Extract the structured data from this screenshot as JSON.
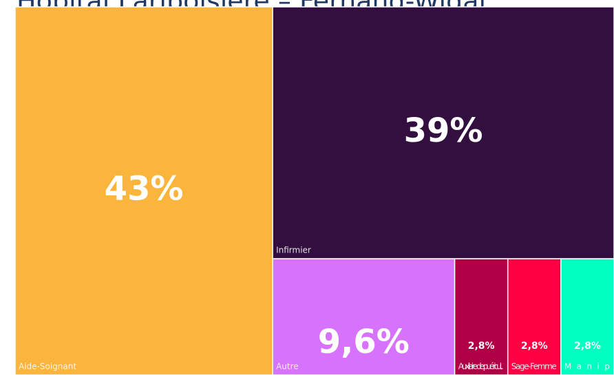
{
  "chart_data": {
    "type": "treemap",
    "title": "Hôpital Lariboisière – Fernand-Widal",
    "categories": [
      "Aide-Soignant",
      "Infirmier",
      "Autre",
      "Auxiliaire de puéricul...",
      "Sage-Femme",
      "Manip"
    ],
    "values": [
      43,
      39,
      9.6,
      2.8,
      2.8,
      2.8
    ],
    "value_labels": [
      "43%",
      "39%",
      "9,6%",
      "2,8%",
      "2,8%",
      "2,8%"
    ],
    "colors": [
      "#fbb43c",
      "#330f40",
      "#d672fb",
      "#b00045",
      "#ff0044",
      "#00ffc0"
    ]
  }
}
